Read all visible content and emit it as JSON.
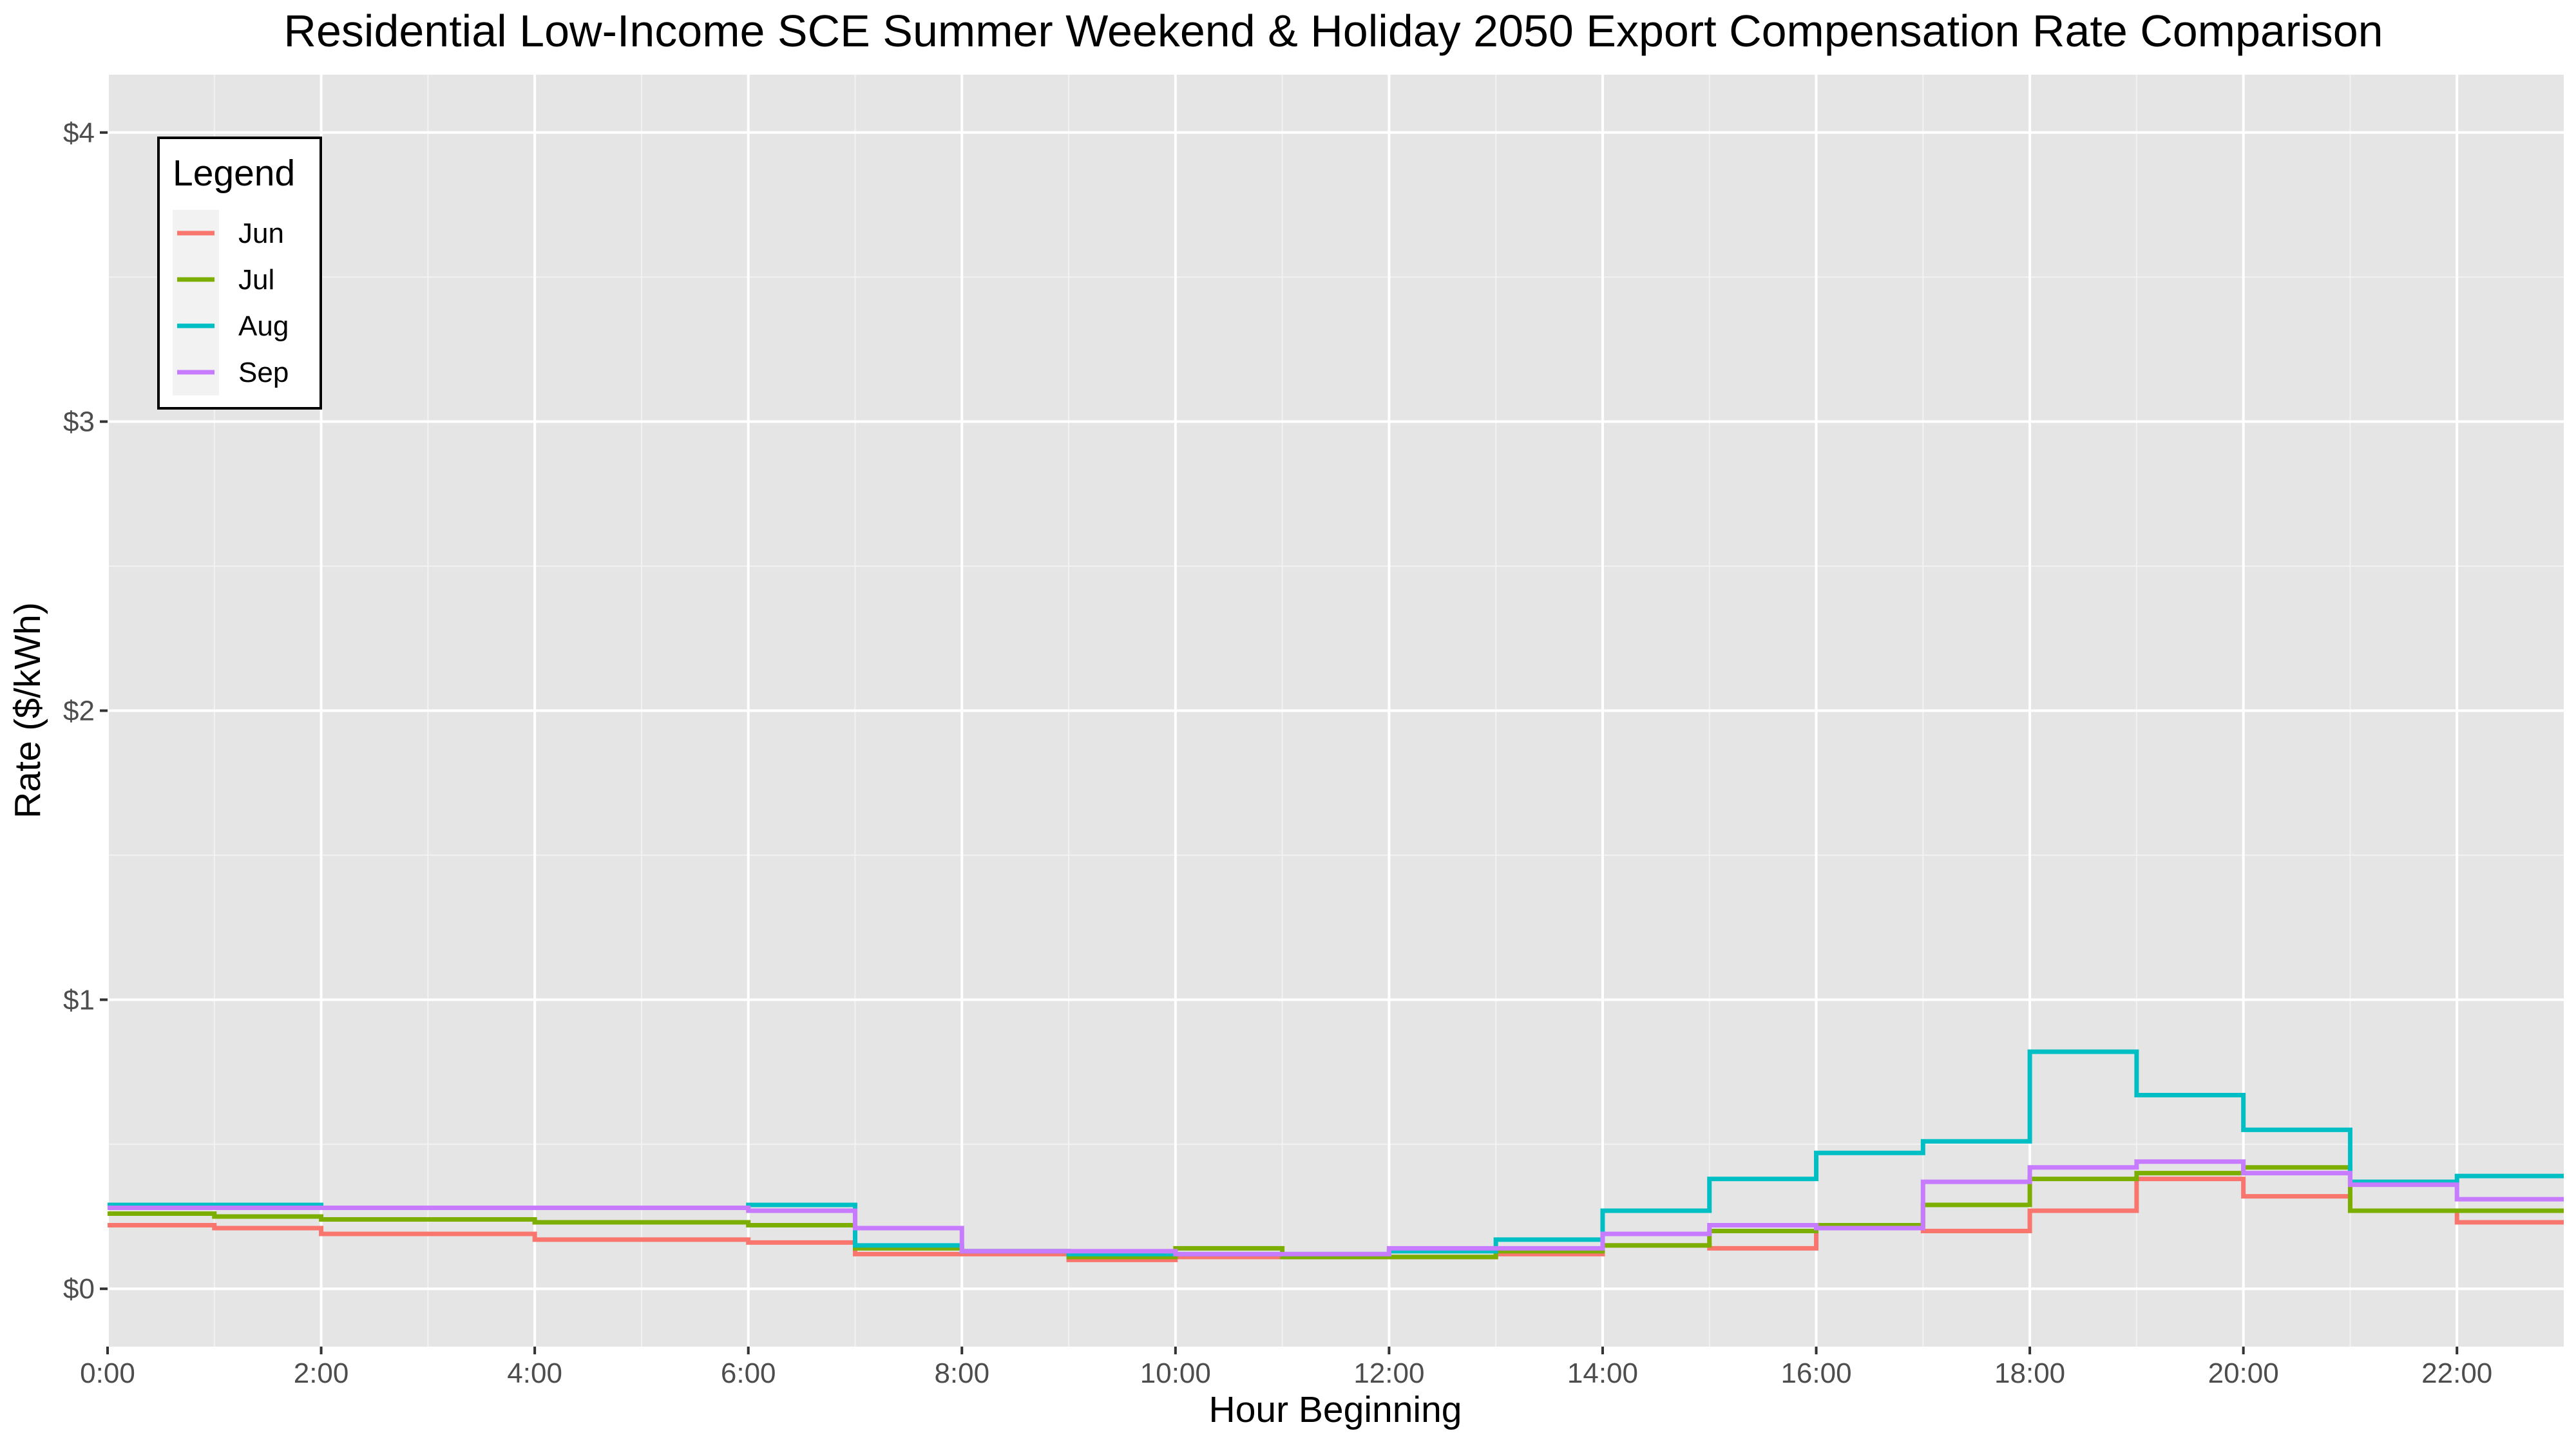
{
  "chart_data": {
    "type": "line",
    "step": true,
    "title": "Residential Low-Income SCE Summer Weekend & Holiday 2050 Export Compensation Rate Comparison",
    "xlabel": "Hour Beginning",
    "ylabel": "Rate ($/kWh)",
    "xlim": [
      0,
      23
    ],
    "ylim": [
      -0.2,
      4.2
    ],
    "x_tick_labels": [
      "0:00",
      "2:00",
      "4:00",
      "6:00",
      "8:00",
      "10:00",
      "12:00",
      "14:00",
      "16:00",
      "18:00",
      "20:00",
      "22:00"
    ],
    "x_tick_values": [
      0,
      2,
      4,
      6,
      8,
      10,
      12,
      14,
      16,
      18,
      20,
      22
    ],
    "y_tick_labels": [
      "$0",
      "$1",
      "$2",
      "$3",
      "$4"
    ],
    "y_tick_values": [
      0,
      1,
      2,
      3,
      4
    ],
    "grid": true,
    "legend_title": "Legend",
    "legend_position": "top-left",
    "x": [
      0,
      1,
      2,
      3,
      4,
      5,
      6,
      7,
      8,
      9,
      10,
      11,
      12,
      13,
      14,
      15,
      16,
      17,
      18,
      19,
      20,
      21,
      22
    ],
    "series": [
      {
        "name": "Jun",
        "color": "#F8766D",
        "values": [
          0.22,
          0.21,
          0.19,
          0.19,
          0.17,
          0.17,
          0.16,
          0.12,
          0.12,
          0.1,
          0.11,
          0.11,
          0.11,
          0.12,
          0.15,
          0.14,
          0.21,
          0.2,
          0.27,
          0.38,
          0.32,
          0.27,
          0.23
        ]
      },
      {
        "name": "Jul",
        "color": "#7CAE00",
        "values": [
          0.26,
          0.25,
          0.24,
          0.24,
          0.23,
          0.23,
          0.22,
          0.14,
          0.13,
          0.11,
          0.14,
          0.11,
          0.11,
          0.13,
          0.15,
          0.2,
          0.22,
          0.29,
          0.38,
          0.4,
          0.42,
          0.27,
          0.27
        ]
      },
      {
        "name": "Aug",
        "color": "#00BFC4",
        "values": [
          0.29,
          0.29,
          0.28,
          0.28,
          0.28,
          0.28,
          0.29,
          0.15,
          0.13,
          0.12,
          0.12,
          0.12,
          0.13,
          0.17,
          0.27,
          0.38,
          0.47,
          0.51,
          0.82,
          0.67,
          0.55,
          0.37,
          0.39
        ]
      },
      {
        "name": "Sep",
        "color": "#C77CFF",
        "values": [
          0.28,
          0.28,
          0.28,
          0.28,
          0.28,
          0.28,
          0.27,
          0.21,
          0.13,
          0.13,
          0.12,
          0.12,
          0.14,
          0.14,
          0.19,
          0.22,
          0.21,
          0.37,
          0.42,
          0.44,
          0.4,
          0.36,
          0.31
        ]
      }
    ]
  }
}
